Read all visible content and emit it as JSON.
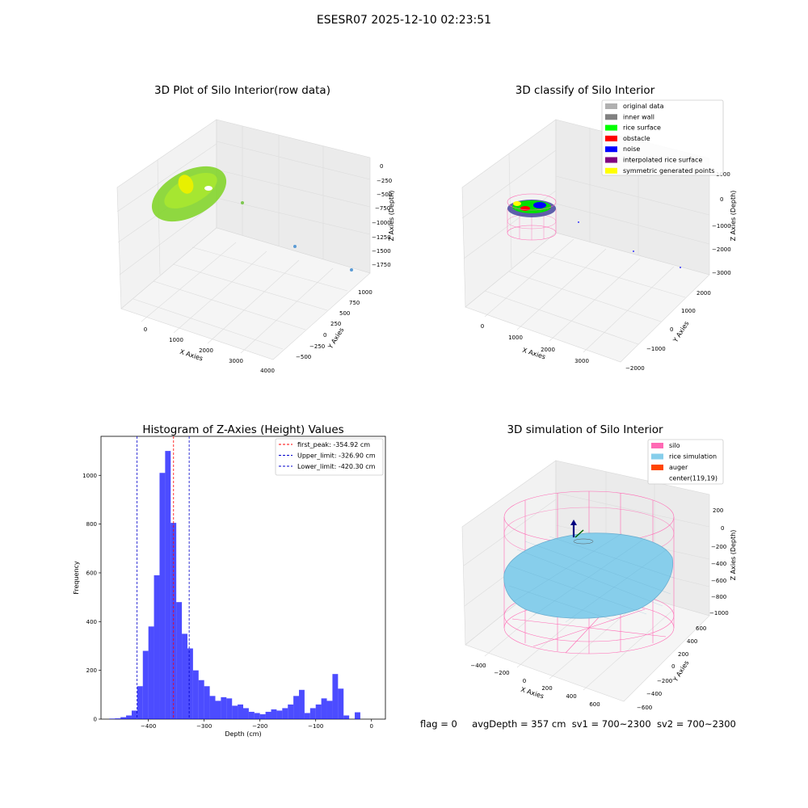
{
  "figure": {
    "suptitle": "ESESR07 2025-12-10 02:23:51",
    "status": {
      "flag": "flag = 0",
      "avg_depth": "avgDepth = 357 cm",
      "sv1": "sv1 = 700~2300",
      "sv2": "sv2 = 700~2300"
    }
  },
  "colors": {
    "green": "#7ed321",
    "yellow": "#e8f000",
    "bar": "#0000ff",
    "pink": "#ff69b4",
    "sky": "#87ceeb",
    "red_line": "#ff0000",
    "blue_line": "#0000cc"
  },
  "chart_data": [
    {
      "type": "scatter",
      "projection": "3d",
      "title": "3D Plot of Silo Interior(row data)",
      "xlabel": "X Axies",
      "ylabel": "Y Axies",
      "zlabel": "Z Axies (Depth)",
      "x_ticks": [
        "0",
        "1000",
        "2000",
        "3000",
        "4000"
      ],
      "y_ticks": [
        "−500",
        "−250",
        "0",
        "250",
        "500",
        "750",
        "1000"
      ],
      "z_ticks": [
        "0",
        "−250",
        "−500",
        "−750",
        "−1000",
        "−1250",
        "−1500",
        "−1750"
      ],
      "outlier_points": [
        {
          "x": 1300,
          "y": 300,
          "z": -400
        },
        {
          "x": 2400,
          "y": 500,
          "z": -1500
        },
        {
          "x": 3900,
          "y": 200,
          "z": -1800
        }
      ]
    },
    {
      "type": "scatter",
      "projection": "3d",
      "title": "3D classify of Silo Interior",
      "xlabel": "X Axies",
      "ylabel": "Y Axies",
      "zlabel": "Z Axies (Depth)",
      "x_ticks": [
        "0",
        "1000",
        "2000",
        "3000"
      ],
      "y_ticks": [
        "−2000",
        "−1000",
        "0",
        "1000",
        "2000"
      ],
      "z_ticks": [
        "1000",
        "0",
        "−1000",
        "−2000",
        "−3000"
      ],
      "legend": {
        "position": "upper right",
        "entries": [
          {
            "label": "original data",
            "color": "#b0b0b0"
          },
          {
            "label": "inner wall",
            "color": "#808080"
          },
          {
            "label": "rice surface",
            "color": "#00ff00"
          },
          {
            "label": "obstacle",
            "color": "#ff0000"
          },
          {
            "label": "noise",
            "color": "#0000ff"
          },
          {
            "label": "interpolated rice surface",
            "color": "#800080"
          },
          {
            "label": "symmetric generated points",
            "color": "#ffff00"
          }
        ]
      }
    },
    {
      "type": "bar",
      "title": "Histogram of Z-Axies (Height) Values",
      "xlabel": "Depth (cm)",
      "ylabel": "Frequency",
      "xlim": [
        -485,
        25
      ],
      "ylim": [
        0,
        1160
      ],
      "x_ticks": [
        -400,
        -300,
        -200,
        -100,
        0
      ],
      "x_tick_labels": [
        "−400",
        "−300",
        "−200",
        "−100",
        "0"
      ],
      "y_ticks": [
        0,
        200,
        400,
        600,
        800,
        1000
      ],
      "bin_start": -470,
      "bin_width": 10,
      "values": [
        2,
        3,
        8,
        15,
        35,
        135,
        280,
        380,
        590,
        1010,
        1100,
        805,
        480,
        350,
        290,
        200,
        160,
        135,
        95,
        75,
        90,
        85,
        55,
        60,
        45,
        30,
        25,
        20,
        30,
        40,
        35,
        45,
        60,
        95,
        120,
        25,
        45,
        60,
        85,
        75,
        185,
        125,
        15,
        0,
        28
      ],
      "vlines": [
        {
          "x": -354.92,
          "label": "first_peak: -354.92 cm",
          "color": "#ff0000"
        },
        {
          "x": -326.9,
          "label": "Upper_limit: -326.90 cm",
          "color": "#0000cc"
        },
        {
          "x": -420.3,
          "label": "Lower_limit: -420.30 cm",
          "color": "#0000cc"
        }
      ],
      "legend": {
        "position": "upper right"
      }
    },
    {
      "type": "surface",
      "projection": "3d",
      "title": "3D simulation of Silo Interior",
      "xlabel": "X Axies",
      "ylabel": "Y Axies",
      "zlabel": "Z Axies (Depth)",
      "x_ticks": [
        "−400",
        "−200",
        "0",
        "200",
        "400",
        "600"
      ],
      "y_ticks": [
        "−600",
        "−400",
        "−200",
        "0",
        "200",
        "400",
        "600"
      ],
      "z_ticks": [
        "200",
        "0",
        "−200",
        "−400",
        "−600",
        "−800",
        "−1000"
      ],
      "legend": {
        "position": "upper right",
        "entries": [
          {
            "label": "silo",
            "color": "#ff69b4"
          },
          {
            "label": "rice simulation",
            "color": "#87ceeb"
          },
          {
            "label": "auger",
            "color": "#ff4500"
          },
          {
            "label": "center(119,19)",
            "color": "#ffffff"
          }
        ]
      }
    }
  ]
}
